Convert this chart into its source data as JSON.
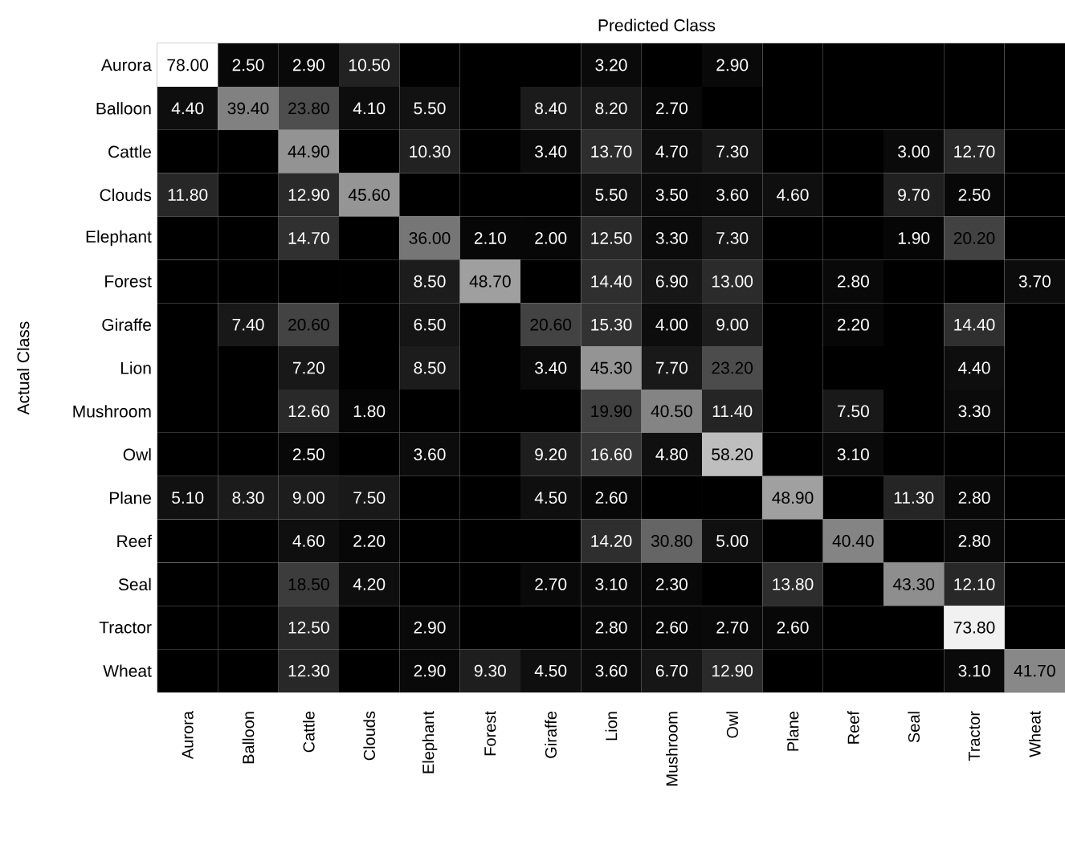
{
  "chart_data": {
    "type": "heatmap",
    "xlabel": "Predicted Class",
    "ylabel": "Actual Class",
    "categories": [
      "Aurora",
      "Balloon",
      "Cattle",
      "Clouds",
      "Elephant",
      "Forest",
      "Giraffe",
      "Lion",
      "Mushroom",
      "Owl",
      "Plane",
      "Reef",
      "Seal",
      "Tractor",
      "Wheat"
    ],
    "y_categories": [
      "Aurora",
      "Balloon",
      "Cattle",
      "Clouds",
      "Elephant",
      "Forest",
      "Giraffe",
      "Lion",
      "Mushroom",
      "Owl",
      "Plane",
      "Reef",
      "Seal",
      "Tractor",
      "Wheat"
    ],
    "cells": [
      [
        78.0,
        2.5,
        2.9,
        10.5,
        null,
        null,
        null,
        3.2,
        null,
        2.9,
        null,
        null,
        null,
        null,
        null
      ],
      [
        4.4,
        39.4,
        23.8,
        4.1,
        5.5,
        null,
        8.4,
        8.2,
        2.7,
        null,
        null,
        null,
        null,
        null,
        null
      ],
      [
        null,
        null,
        44.9,
        null,
        10.3,
        null,
        3.4,
        13.7,
        4.7,
        7.3,
        null,
        null,
        3.0,
        12.7,
        null
      ],
      [
        11.8,
        null,
        12.9,
        45.6,
        null,
        null,
        null,
        5.5,
        3.5,
        3.6,
        4.6,
        null,
        9.7,
        2.5,
        null
      ],
      [
        null,
        null,
        14.7,
        null,
        36.0,
        2.1,
        2.0,
        12.5,
        3.3,
        7.3,
        null,
        null,
        1.9,
        20.2,
        null
      ],
      [
        null,
        null,
        null,
        null,
        8.5,
        48.7,
        null,
        14.4,
        6.9,
        13.0,
        null,
        2.8,
        null,
        null,
        3.7
      ],
      [
        null,
        7.4,
        20.6,
        null,
        6.5,
        null,
        20.6,
        15.3,
        4.0,
        9.0,
        null,
        2.2,
        null,
        14.4,
        null
      ],
      [
        null,
        null,
        7.2,
        null,
        8.5,
        null,
        3.4,
        45.3,
        7.7,
        23.2,
        null,
        null,
        null,
        4.4,
        null
      ],
      [
        null,
        null,
        12.6,
        1.8,
        null,
        null,
        null,
        19.9,
        40.5,
        11.4,
        null,
        7.5,
        null,
        3.3,
        null
      ],
      [
        null,
        null,
        2.5,
        null,
        3.6,
        null,
        9.2,
        16.6,
        4.8,
        58.2,
        null,
        3.1,
        null,
        null,
        null
      ],
      [
        5.1,
        8.3,
        9.0,
        7.5,
        null,
        null,
        4.5,
        2.6,
        null,
        null,
        48.9,
        null,
        11.3,
        2.8,
        null
      ],
      [
        null,
        null,
        4.6,
        2.2,
        null,
        null,
        null,
        14.2,
        30.8,
        5.0,
        null,
        40.4,
        null,
        2.8,
        null
      ],
      [
        null,
        null,
        18.5,
        4.2,
        null,
        null,
        2.7,
        3.1,
        2.3,
        null,
        13.8,
        null,
        43.3,
        12.1,
        null
      ],
      [
        null,
        null,
        12.5,
        null,
        2.9,
        null,
        null,
        2.8,
        2.6,
        2.7,
        2.6,
        null,
        null,
        73.8,
        null
      ],
      [
        null,
        null,
        12.3,
        null,
        2.9,
        9.3,
        4.5,
        3.6,
        6.7,
        12.9,
        null,
        null,
        null,
        3.1,
        41.7
      ]
    ],
    "cell_labels": [
      [
        "78.00",
        "2.50",
        "2.90",
        "10.50",
        null,
        null,
        null,
        "3.20",
        null,
        "2.90",
        null,
        null,
        null,
        null,
        null
      ],
      [
        "4.40",
        "39.40",
        "23.80",
        "4.10",
        "5.50",
        null,
        "8.40",
        "8.20",
        "2.70",
        null,
        null,
        null,
        null,
        null,
        null
      ],
      [
        null,
        null,
        "44.90",
        null,
        "10.30",
        null,
        "3.40",
        "13.70",
        "4.70",
        "7.30",
        null,
        null,
        "3.00",
        "12.70",
        null
      ],
      [
        "11.80",
        null,
        "12.90",
        "45.60",
        null,
        null,
        null,
        "5.50",
        "3.50",
        "3.60",
        "4.60",
        null,
        "9.70",
        "2.50",
        null
      ],
      [
        null,
        null,
        "14.70",
        null,
        "36.00",
        "2.10",
        "2.00",
        "12.50",
        "3.30",
        "7.30",
        null,
        null,
        "1.90",
        "20.20",
        null
      ],
      [
        null,
        null,
        null,
        null,
        "8.50",
        "48.70",
        null,
        "14.40",
        "6.90",
        "13.00",
        null,
        "2.80",
        null,
        null,
        "3.70"
      ],
      [
        null,
        "7.40",
        "20.60",
        null,
        "6.50",
        null,
        "20.60",
        "15.30",
        "4.00",
        "9.00",
        null,
        "2.20",
        null,
        "14.40",
        null
      ],
      [
        null,
        null,
        "7.20",
        null,
        "8.50",
        null,
        "3.40",
        "45.30",
        "7.70",
        "23.20",
        null,
        null,
        null,
        "4.40",
        null
      ],
      [
        null,
        null,
        "12.60",
        "1.80",
        null,
        null,
        null,
        "19.90",
        "40.50",
        "11.40",
        null,
        "7.50",
        null,
        "3.30",
        null
      ],
      [
        null,
        null,
        "2.50",
        null,
        "3.60",
        null,
        "9.20",
        "16.60",
        "4.80",
        "58.20",
        null,
        "3.10",
        null,
        null,
        null
      ],
      [
        "5.10",
        "8.30",
        "9.00",
        "7.50",
        null,
        null,
        "4.50",
        "2.60",
        null,
        null,
        "48.90",
        null,
        "11.30",
        "2.80",
        null
      ],
      [
        null,
        null,
        "4.60",
        "2.20",
        null,
        null,
        null,
        "14.20",
        "30.80",
        "5.00",
        null,
        "40.40",
        null,
        "2.80",
        null
      ],
      [
        null,
        null,
        "18.50",
        "4.20",
        null,
        null,
        "2.70",
        "3.10",
        "2.30",
        null,
        "13.80",
        null,
        "43.30",
        "12.10",
        null
      ],
      [
        null,
        null,
        "12.50",
        null,
        "2.90",
        null,
        null,
        "2.80",
        "2.60",
        "2.70",
        "2.60",
        null,
        null,
        "73.80",
        null
      ],
      [
        null,
        null,
        "12.30",
        null,
        "2.90",
        "9.30",
        "4.50",
        "3.60",
        "6.70",
        "12.90",
        null,
        null,
        null,
        "3.10",
        "41.70"
      ]
    ]
  }
}
